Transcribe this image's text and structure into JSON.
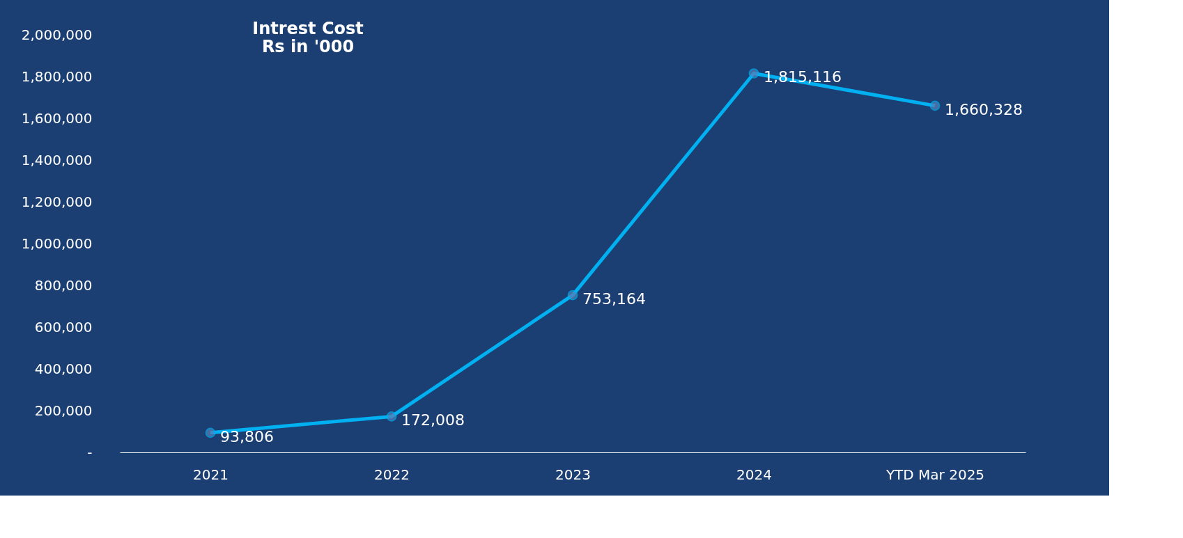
{
  "chart_data": {
    "type": "line",
    "title": [
      "Intrest Cost",
      "Rs in '000"
    ],
    "categories": [
      "2021",
      "2022",
      "2023",
      "2024",
      "YTD Mar 2025"
    ],
    "series": [
      {
        "color": "#00b0f0",
        "values": [
          93806,
          172008,
          753164,
          1815116,
          1660328
        ],
        "value_labels": [
          "93,806",
          "172,008",
          "753,164",
          "1,815,116",
          "1,660,328"
        ]
      }
    ],
    "ylim": [
      0,
      2000000
    ],
    "yticks": [
      {
        "value": 0,
        "label": "-"
      },
      {
        "value": 200000,
        "label": "200,000"
      },
      {
        "value": 400000,
        "label": "400,000"
      },
      {
        "value": 600000,
        "label": "600,000"
      },
      {
        "value": 800000,
        "label": "800,000"
      },
      {
        "value": 1000000,
        "label": "1,000,000"
      },
      {
        "value": 1200000,
        "label": "1,200,000"
      },
      {
        "value": 1400000,
        "label": "1,400,000"
      },
      {
        "value": 1600000,
        "label": "1,600,000"
      },
      {
        "value": 1800000,
        "label": "1,800,000"
      },
      {
        "value": 2000000,
        "label": "2,000,000"
      }
    ],
    "grid": false,
    "legend": false,
    "marker": "circle",
    "line_style": "solid"
  }
}
